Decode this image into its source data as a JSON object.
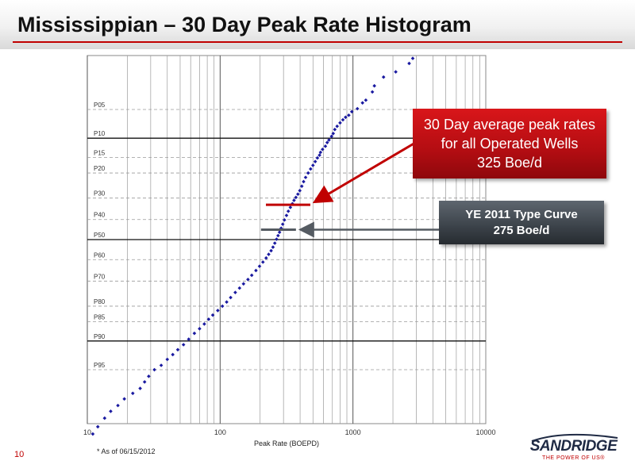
{
  "header": {
    "title": "Mississippian – 30 Day Peak Rate Histogram"
  },
  "page_number": "10",
  "footnote": "*   As of 06/15/2012",
  "logo": {
    "word": "SANDRIDGE",
    "tagline": "THE POWER OF US®"
  },
  "colors": {
    "accent": "#c00000",
    "points": "#1a1aa0",
    "gray_callout": "#3b4249"
  },
  "chart_data": {
    "type": "scatter",
    "title": "",
    "xlabel": "Peak Rate (BOEPD)",
    "ylabel": "",
    "x_scale": "log",
    "xlim": [
      10,
      10000
    ],
    "x_ticks": [
      10,
      100,
      1000,
      10000
    ],
    "x_tick_labels": [
      "10",
      "100",
      "1000",
      "10000"
    ],
    "y_scale": "probability",
    "ylim_percentile": [
      1,
      99
    ],
    "y_ticks": [
      {
        "label": "P05",
        "p": 5,
        "major": false
      },
      {
        "label": "P10",
        "p": 10,
        "major": true
      },
      {
        "label": "P15",
        "p": 15,
        "major": false
      },
      {
        "label": "P20",
        "p": 20,
        "major": false
      },
      {
        "label": "P30",
        "p": 30,
        "major": false
      },
      {
        "label": "P40",
        "p": 40,
        "major": false
      },
      {
        "label": "P50",
        "p": 50,
        "major": true
      },
      {
        "label": "P60",
        "p": 60,
        "major": false
      },
      {
        "label": "P70",
        "p": 70,
        "major": false
      },
      {
        "label": "P80",
        "p": 80,
        "major": false
      },
      {
        "label": "P85",
        "p": 85,
        "major": false
      },
      {
        "label": "P90",
        "p": 90,
        "major": true
      },
      {
        "label": "P95",
        "p": 95,
        "major": false
      }
    ],
    "grid": true,
    "series": [
      {
        "points": [
          [
            2820,
            1.1
          ],
          [
            2650,
            1.3
          ],
          [
            2100,
            1.7
          ],
          [
            1700,
            2.0
          ],
          [
            1450,
            2.6
          ],
          [
            1400,
            3.1
          ],
          [
            1250,
            3.9
          ],
          [
            1180,
            4.2
          ],
          [
            1080,
            4.9
          ],
          [
            980,
            5.3
          ],
          [
            930,
            5.8
          ],
          [
            880,
            6.1
          ],
          [
            840,
            6.5
          ],
          [
            800,
            7.0
          ],
          [
            760,
            7.6
          ],
          [
            730,
            8.2
          ],
          [
            710,
            9.0
          ],
          [
            690,
            9.6
          ],
          [
            660,
            10.4
          ],
          [
            640,
            11.0
          ],
          [
            620,
            11.9
          ],
          [
            590,
            12.7
          ],
          [
            570,
            13.5
          ],
          [
            560,
            14.3
          ],
          [
            540,
            15.1
          ],
          [
            520,
            16.2
          ],
          [
            500,
            17.4
          ],
          [
            480,
            18.6
          ],
          [
            460,
            20.0
          ],
          [
            440,
            21.6
          ],
          [
            425,
            23.2
          ],
          [
            412,
            25.0
          ],
          [
            398,
            26.8
          ],
          [
            385,
            28.3
          ],
          [
            372,
            29.7
          ],
          [
            360,
            31.0
          ],
          [
            350,
            32.5
          ],
          [
            338,
            34.2
          ],
          [
            326,
            36.0
          ],
          [
            316,
            38.0
          ],
          [
            305,
            40.2
          ],
          [
            296,
            42.3
          ],
          [
            288,
            44.3
          ],
          [
            280,
            46.3
          ],
          [
            273,
            48.0
          ],
          [
            266,
            49.8
          ],
          [
            258,
            51.8
          ],
          [
            250,
            53.8
          ],
          [
            242,
            55.6
          ],
          [
            232,
            57.4
          ],
          [
            222,
            59.2
          ],
          [
            210,
            61.2
          ],
          [
            198,
            63.2
          ],
          [
            186,
            65.2
          ],
          [
            173,
            67.4
          ],
          [
            162,
            69.3
          ],
          [
            150,
            71.2
          ],
          [
            140,
            73.0
          ],
          [
            130,
            74.8
          ],
          [
            120,
            76.8
          ],
          [
            112,
            78.5
          ],
          [
            104,
            80.0
          ],
          [
            96,
            81.5
          ],
          [
            88,
            83.0
          ],
          [
            82,
            84.3
          ],
          [
            76,
            85.7
          ],
          [
            70,
            87.0
          ],
          [
            64,
            88.2
          ],
          [
            58,
            89.6
          ],
          [
            53,
            90.8
          ],
          [
            48,
            91.8
          ],
          [
            44,
            92.7
          ],
          [
            40,
            93.5
          ],
          [
            36,
            94.4
          ],
          [
            32,
            95.0
          ],
          [
            29,
            95.8
          ],
          [
            27,
            96.4
          ],
          [
            25,
            97.0
          ],
          [
            22,
            97.4
          ],
          [
            19,
            97.8
          ],
          [
            17,
            98.2
          ],
          [
            15,
            98.5
          ],
          [
            13.5,
            98.8
          ],
          [
            12,
            99.1
          ],
          [
            11,
            99.3
          ]
        ]
      }
    ],
    "markers": [
      {
        "x": 325,
        "p": 33,
        "color": "#c00000",
        "label_lines": [
          "30 Day average peak rates",
          "for all Operated Wells",
          "325 Boe/d"
        ]
      },
      {
        "x": 275,
        "p": 45,
        "color": "#555b62",
        "label_lines": [
          "YE 2011 Type Curve",
          "275 Boe/d"
        ]
      }
    ]
  }
}
